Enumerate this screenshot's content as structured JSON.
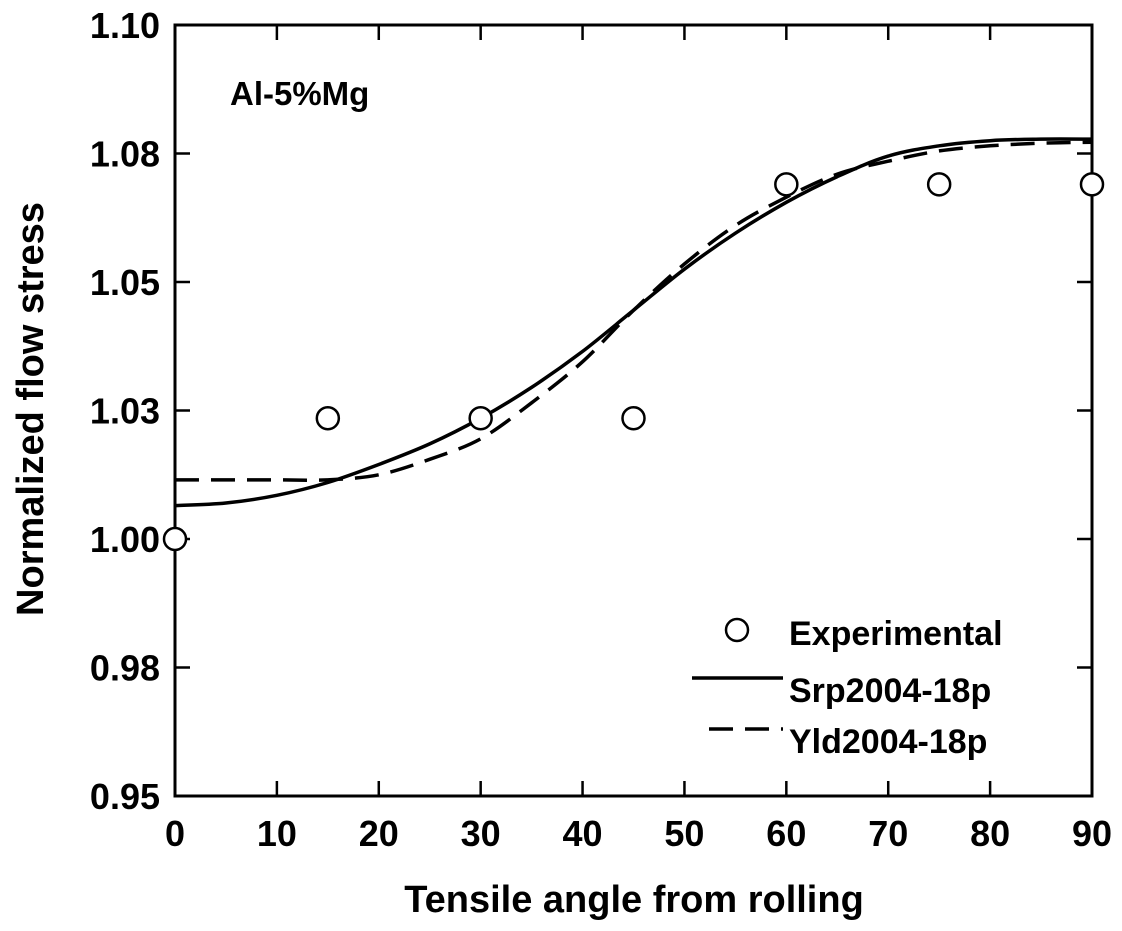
{
  "chart_data": {
    "type": "line",
    "title": "",
    "annotation": "Al-5%Mg",
    "xlabel": "Tensile angle from rolling",
    "ylabel": "Normalized flow stress",
    "xlim": [
      0,
      90
    ],
    "ylim": [
      0.95,
      1.1
    ],
    "x_ticks": [
      0,
      10,
      20,
      30,
      40,
      50,
      60,
      70,
      80,
      90
    ],
    "x_tick_labels": [
      "0",
      "10",
      "20",
      "30",
      "40",
      "50",
      "60",
      "70",
      "80",
      "90"
    ],
    "y_ticks": [
      0.95,
      0.975,
      1.0,
      1.025,
      1.05,
      1.075,
      1.1
    ],
    "y_tick_labels": [
      "0.95",
      "0.98",
      "1.00",
      "1.03",
      "1.05",
      "1.08",
      "1.10"
    ],
    "grid": false,
    "legend_position": "bottom-right",
    "series": [
      {
        "name": "Experimental",
        "style": "open-circle",
        "x": [
          0,
          15,
          30,
          45,
          60,
          75,
          90
        ],
        "y": [
          1.0,
          1.0235,
          1.0235,
          1.0235,
          1.069,
          1.069,
          1.069
        ]
      },
      {
        "name": "Srp2004-18p",
        "style": "solid",
        "x": [
          0,
          5,
          10,
          15,
          20,
          25,
          30,
          35,
          40,
          45,
          50,
          55,
          60,
          65,
          70,
          75,
          80,
          85,
          90
        ],
        "y": [
          1.0065,
          1.007,
          1.0085,
          1.011,
          1.0145,
          1.0185,
          1.0235,
          1.0295,
          1.0365,
          1.0445,
          1.0525,
          1.0595,
          1.0655,
          1.0705,
          1.0745,
          1.0765,
          1.0775,
          1.0778,
          1.0778
        ]
      },
      {
        "name": "Yld2004-18p",
        "style": "dashed",
        "x": [
          0,
          5,
          10,
          15,
          20,
          25,
          30,
          35,
          40,
          45,
          50,
          55,
          60,
          65,
          70,
          75,
          80,
          85,
          90
        ],
        "y": [
          1.0115,
          1.0115,
          1.0115,
          1.0115,
          1.0125,
          1.0155,
          1.0195,
          1.0265,
          1.0345,
          1.0445,
          1.0535,
          1.061,
          1.0665,
          1.071,
          1.0735,
          1.0755,
          1.0765,
          1.077,
          1.0772
        ]
      }
    ]
  },
  "colors": {
    "line": "#000000",
    "background": "#ffffff",
    "marker_fill": "#ffffff"
  }
}
